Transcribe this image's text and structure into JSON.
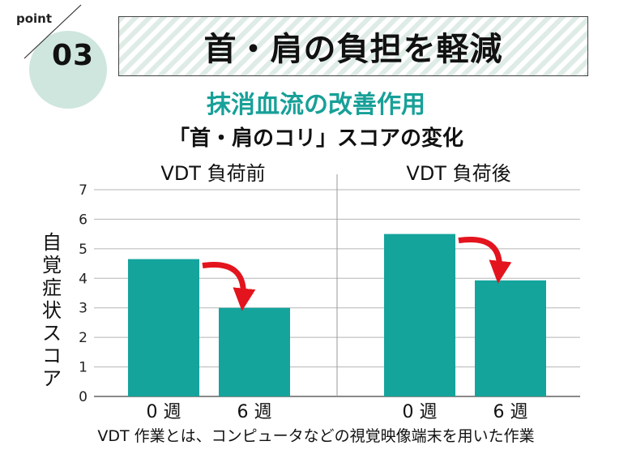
{
  "header": {
    "point_label": "point",
    "point_number": "03",
    "title": "首・肩の負担を軽減"
  },
  "subtitle": "抹消血流の改善作用",
  "chart_title": "「首・肩のコリ」スコアの変化",
  "footnote": "VDT 作業とは、コンピュータなどの視覚映像端末を用いた作業",
  "colors": {
    "bar": "#14a49c",
    "accent": "#17a098",
    "arrow": "#e3141e",
    "point_circle": "#cfe6df"
  },
  "chart_data": {
    "type": "bar",
    "ylabel": "自覚症状スコア",
    "ylim": [
      0,
      7
    ],
    "yticks": [
      0,
      1,
      2,
      3,
      4,
      5,
      6,
      7
    ],
    "grid": true,
    "panels": [
      {
        "label": "VDT 負荷前",
        "categories": [
          "0 週",
          "6 週"
        ],
        "values": [
          4.65,
          3.0
        ]
      },
      {
        "label": "VDT 負荷後",
        "categories": [
          "0 週",
          "6 週"
        ],
        "values": [
          5.5,
          3.93
        ]
      }
    ],
    "annotations": [
      "red arrow indicating decrease from 0 週 to 6 週 in each panel"
    ]
  }
}
